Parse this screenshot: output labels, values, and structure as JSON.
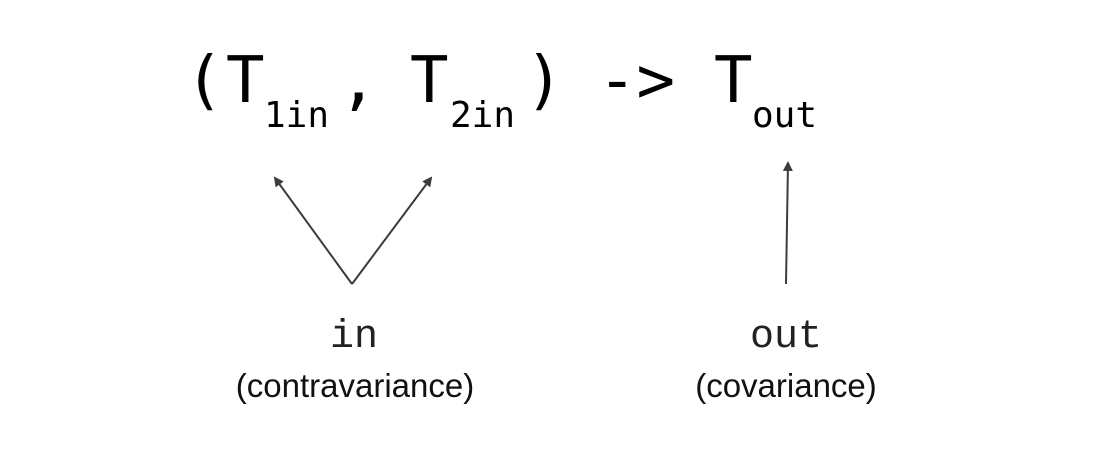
{
  "signature": {
    "open_paren": "(",
    "t1": "T",
    "t1_sub": "1in",
    "comma": ",",
    "t2": "T",
    "t2_sub": "2in",
    "close_paren": ")",
    "arrow": "->",
    "tout": "T",
    "tout_sub": "out"
  },
  "left_group": {
    "keyword": "in",
    "description": "(contravariance)"
  },
  "right_group": {
    "keyword": "out",
    "description": "(covariance)"
  },
  "colors": {
    "text": "#000000",
    "arrow": "#3c3c3c"
  }
}
